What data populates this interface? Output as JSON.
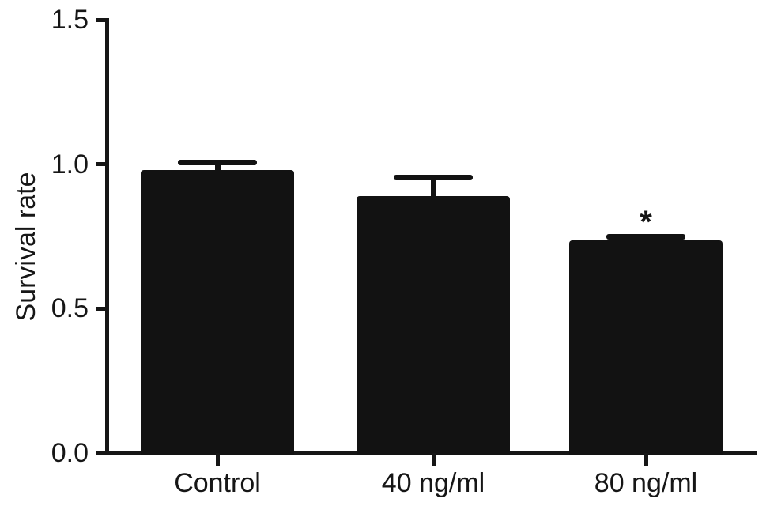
{
  "chart_data": {
    "type": "bar",
    "title": "",
    "xlabel": "",
    "ylabel": "Survival rate",
    "categories": [
      "Control",
      "40 ng/ml",
      "80 ng/ml"
    ],
    "values": [
      0.98,
      0.89,
      0.735
    ],
    "errors": [
      0.025,
      0.065,
      0.015
    ],
    "ylim": [
      0,
      1.5
    ],
    "ytick_values": [
      0,
      0.5,
      1.0,
      1.5
    ],
    "ytick_labels": [
      "0.0",
      "0.5",
      "1.0",
      "1.5"
    ],
    "bar_color": "#121212",
    "axis_color": "#161616",
    "background_color": "#ffffff",
    "grid": false,
    "legend": null,
    "annotations": [
      {
        "category": "80 ng/ml",
        "index": 2,
        "text": "*"
      }
    ]
  }
}
